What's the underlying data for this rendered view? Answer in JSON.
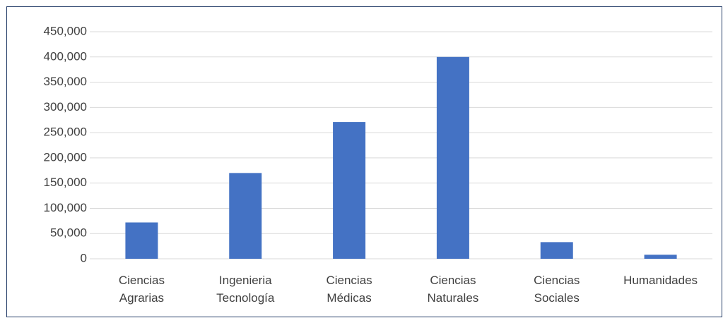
{
  "chart_data": {
    "type": "bar",
    "title": "",
    "xlabel": "",
    "ylabel": "",
    "categories": [
      [
        "Ciencias",
        "Agrarias"
      ],
      [
        "Ingenieria",
        "Tecnología"
      ],
      [
        "Ciencias",
        "Médicas"
      ],
      [
        "Ciencias",
        "Naturales"
      ],
      [
        "Ciencias",
        "Sociales"
      ],
      [
        "Humanidades"
      ]
    ],
    "values": [
      72000,
      170000,
      271000,
      400000,
      33000,
      8000
    ],
    "ylim": [
      0,
      450000
    ],
    "yticks": [
      "0",
      "50,000",
      "100,000",
      "150,000",
      "200,000",
      "250,000",
      "300,000",
      "350,000",
      "400,000",
      "450,000"
    ],
    "grid": true,
    "legend": "none",
    "bar_color": "#4472c4",
    "grid_color": "#d9d9d9",
    "frame_color": "#1f3864"
  }
}
